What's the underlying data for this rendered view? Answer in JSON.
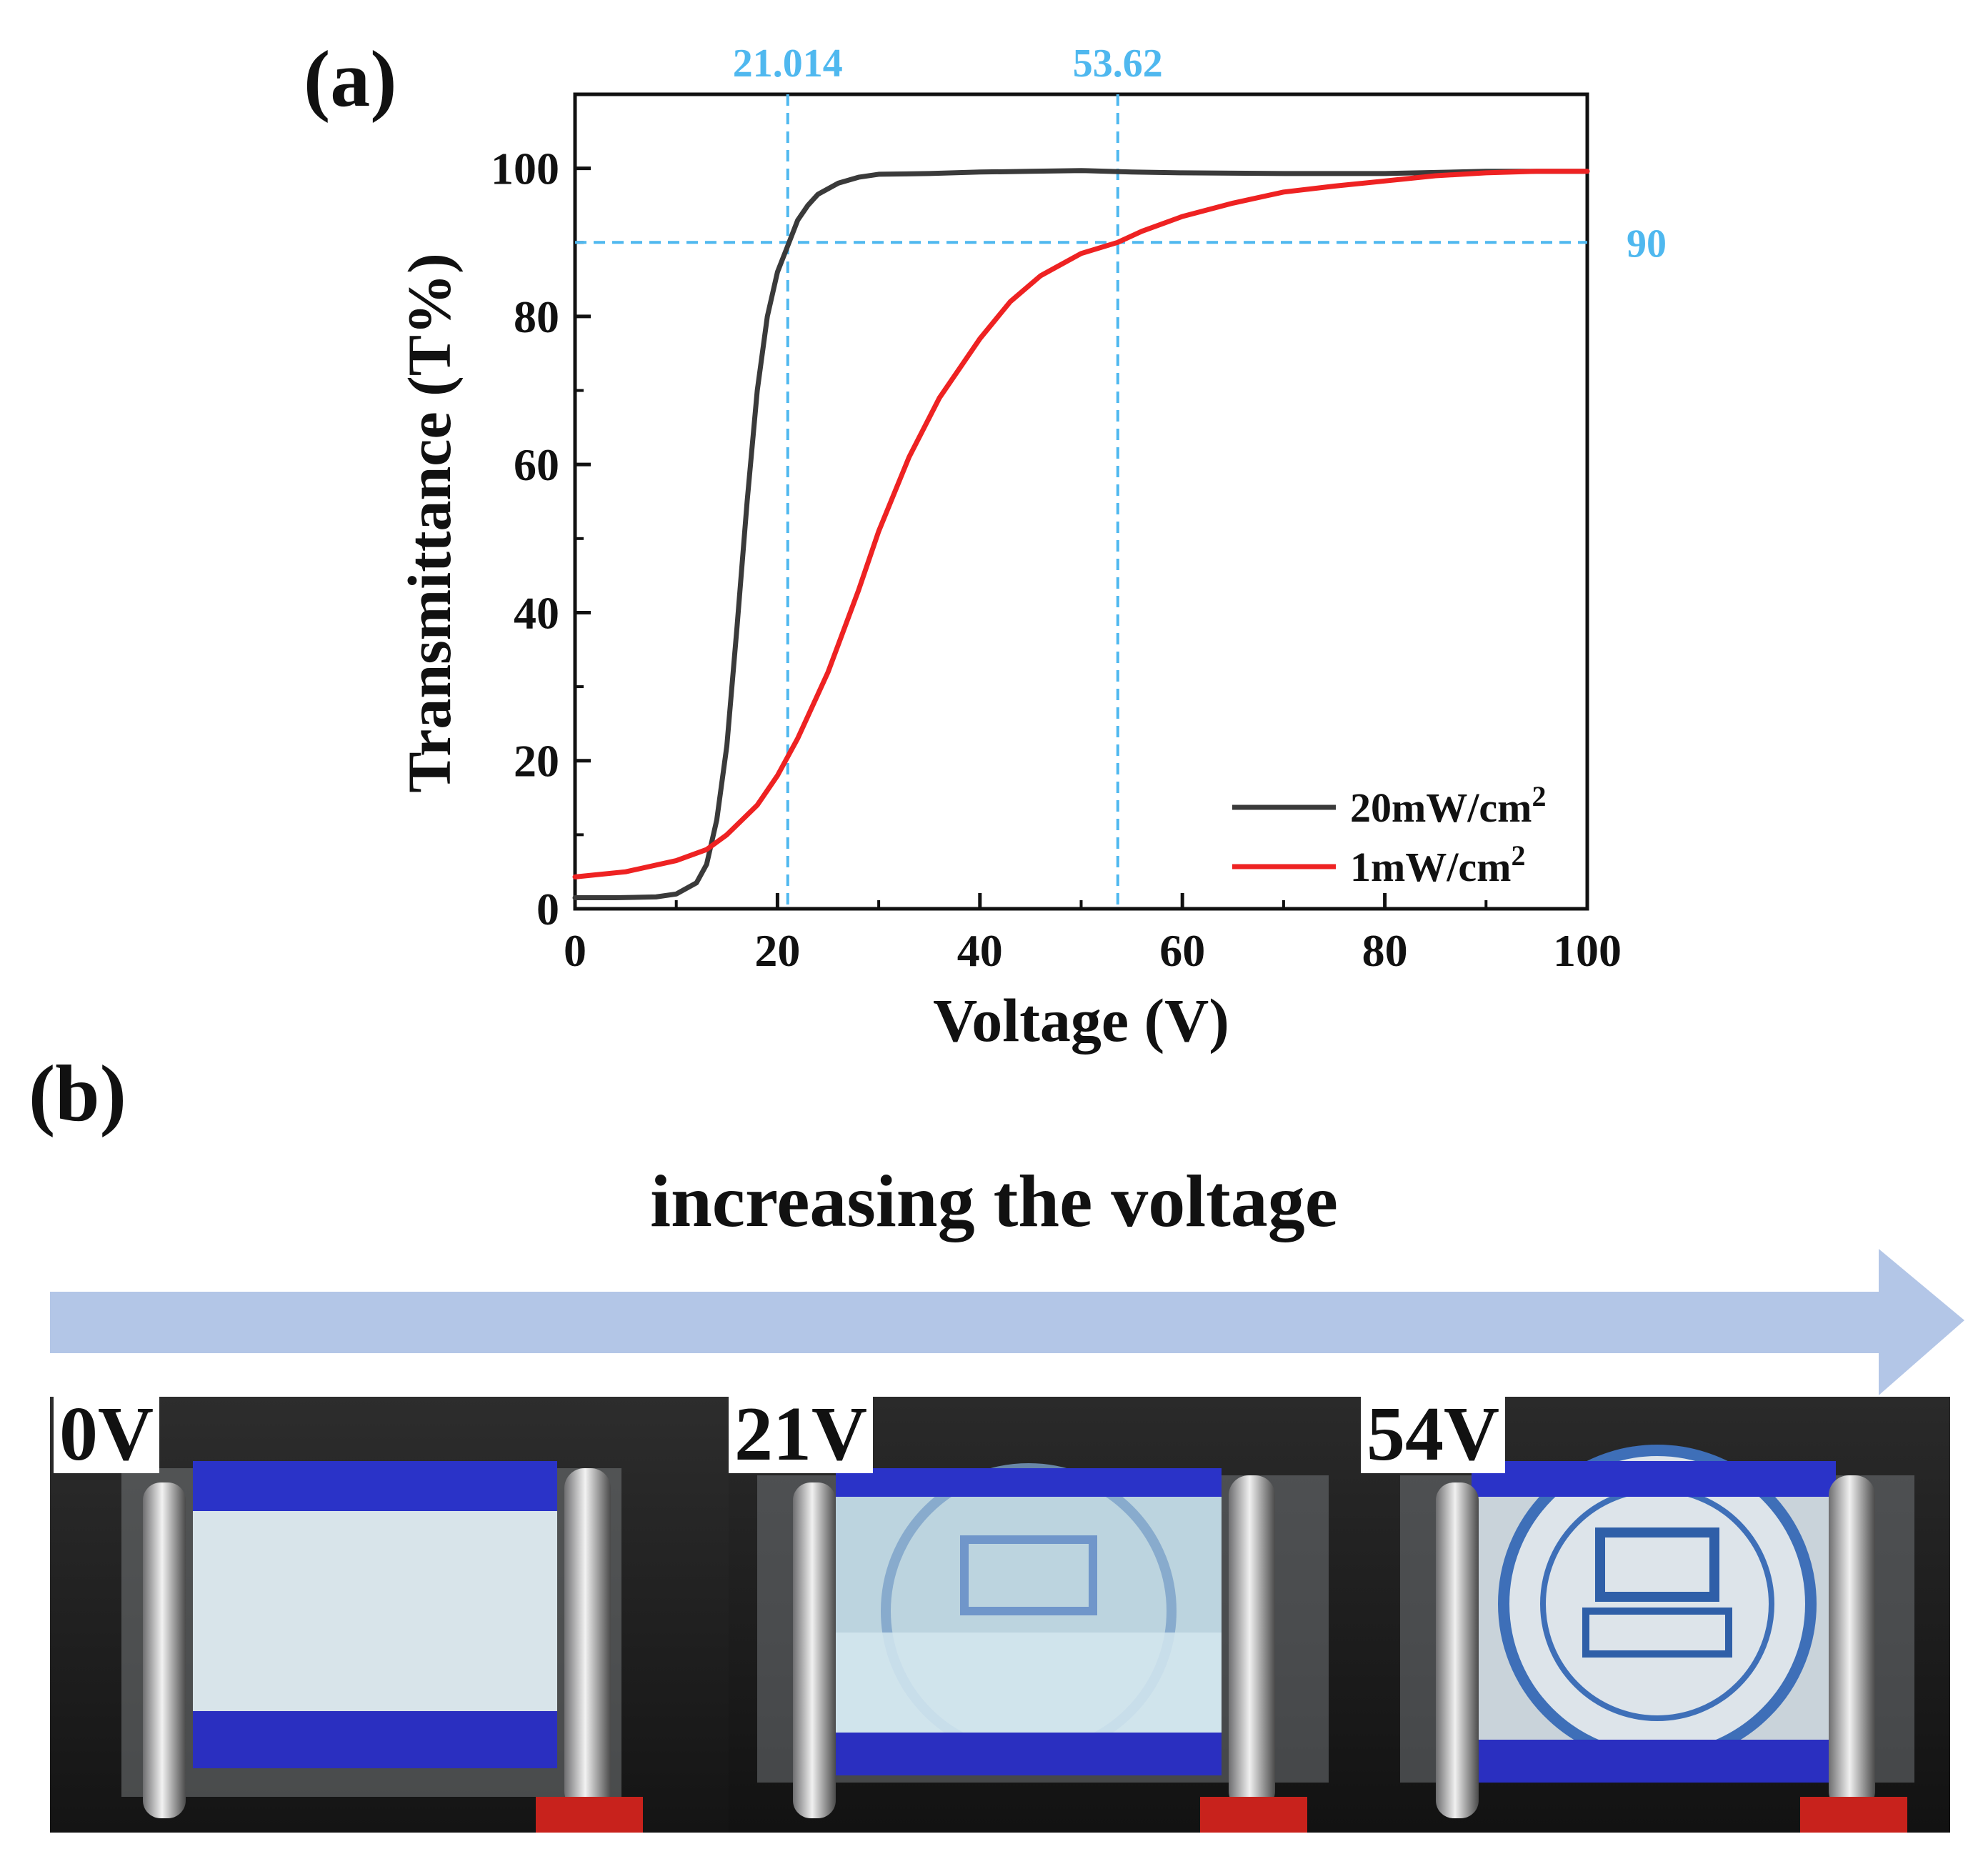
{
  "panel_a_label": "(a)",
  "panel_b_label": "(b)",
  "headline": "increasing the voltage",
  "colors": {
    "guide": "#4fb8ef",
    "series_20": "#3a3a3a",
    "series_1": "#ee2222",
    "arrow": "#b3c6e7"
  },
  "chart_data": {
    "type": "line",
    "xlabel": "Voltage (V)",
    "ylabel": "Transmittance (T%)",
    "xlim": [
      0,
      100
    ],
    "ylim": [
      0,
      110
    ],
    "xticks": [
      "0",
      "20",
      "40",
      "60",
      "80",
      "100"
    ],
    "yticks": [
      "0",
      "20",
      "40",
      "60",
      "80",
      "100"
    ],
    "legend_position": "bottom-right",
    "guides": {
      "v1_label": "21.014",
      "v1": 21.014,
      "v2_label": "53.62",
      "v2": 53.62,
      "h_label": "90",
      "h": 90
    },
    "series": [
      {
        "name": "20mW/cm",
        "superscript": "2",
        "color": "#3a3a3a",
        "x": [
          0,
          4,
          8,
          10,
          12,
          13,
          14,
          15,
          16,
          17,
          18,
          19,
          20,
          21,
          22,
          23,
          24,
          26,
          28,
          30,
          35,
          40,
          45,
          50,
          55,
          60,
          70,
          80,
          90,
          100
        ],
        "y": [
          1.5,
          1.5,
          1.6,
          2.0,
          3.5,
          6,
          12,
          22,
          38,
          55,
          70,
          80,
          86,
          89.5,
          93,
          95,
          96.5,
          98,
          98.8,
          99.2,
          99.3,
          99.5,
          99.6,
          99.7,
          99.5,
          99.4,
          99.3,
          99.3,
          99.6,
          99.6
        ]
      },
      {
        "name": "1mW/cm",
        "superscript": "2",
        "color": "#ee2222",
        "x": [
          0,
          5,
          10,
          13,
          15,
          18,
          20,
          22,
          25,
          28,
          30,
          33,
          36,
          40,
          43,
          46,
          50,
          53.6,
          56,
          60,
          65,
          70,
          75,
          80,
          85,
          90,
          95,
          100
        ],
        "y": [
          4.3,
          5,
          6.5,
          8,
          10,
          14,
          18,
          23,
          32,
          43,
          51,
          61,
          69,
          77,
          82,
          85.5,
          88.5,
          90,
          91.5,
          93.5,
          95.3,
          96.8,
          97.6,
          98.3,
          99,
          99.4,
          99.6,
          99.6
        ]
      }
    ]
  },
  "photos": [
    {
      "label": "0V"
    },
    {
      "label": "21V"
    },
    {
      "label": "54V"
    }
  ]
}
